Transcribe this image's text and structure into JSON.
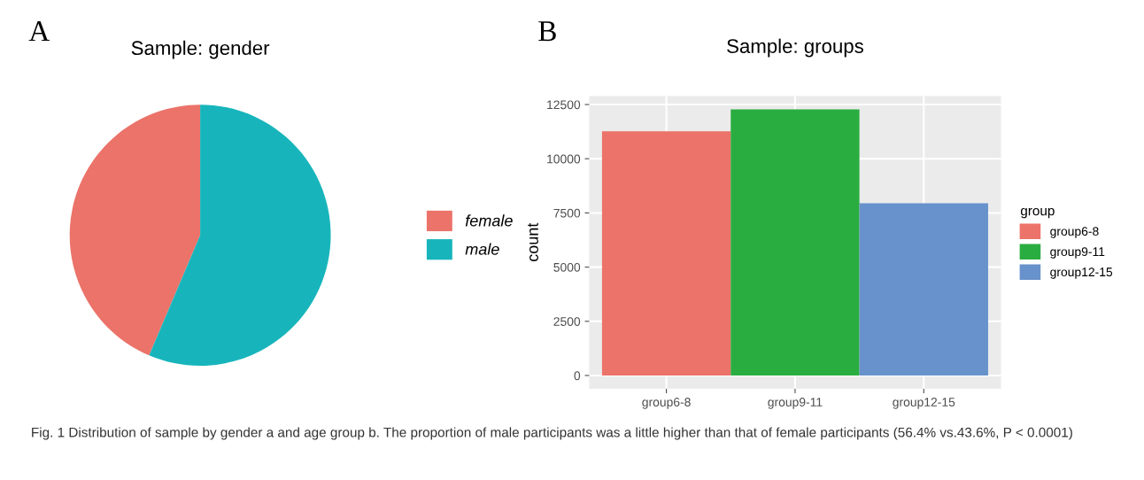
{
  "chart_data": [
    {
      "type": "pie",
      "title": "Sample: gender",
      "annotations": [
        "A"
      ],
      "categories": [
        "female",
        "male"
      ],
      "values": [
        43.6,
        56.4
      ],
      "colors": [
        "#eb7369",
        "#17b5bb"
      ],
      "legend": "right"
    },
    {
      "type": "bar",
      "title": "Sample: groups",
      "annotations": [
        "B",
        "Fig. 1 Distribution of sample by gender a and age group b. The proportion of male participants was a little higher than that of female participants (56.4% vs.43.6%, P < 0.0001)"
      ],
      "ylabel": "count",
      "legend_title": "group",
      "categories": [
        "group6-8",
        "group9-11",
        "group12-15"
      ],
      "series": [
        {
          "name": "group6-8",
          "color": "#eb7369",
          "values": [
            11270,
            null,
            null
          ]
        },
        {
          "name": "group9-11",
          "color": "#2aad40",
          "values": [
            null,
            12280,
            null
          ]
        },
        {
          "name": "group12-15",
          "color": "#6892cb",
          "values": [
            null,
            null,
            7950
          ]
        }
      ],
      "ylim": [
        -614,
        12894
      ],
      "yticks": [
        0,
        2500,
        5000,
        7500,
        10000,
        12500
      ],
      "grid": true,
      "legend": "right"
    }
  ]
}
